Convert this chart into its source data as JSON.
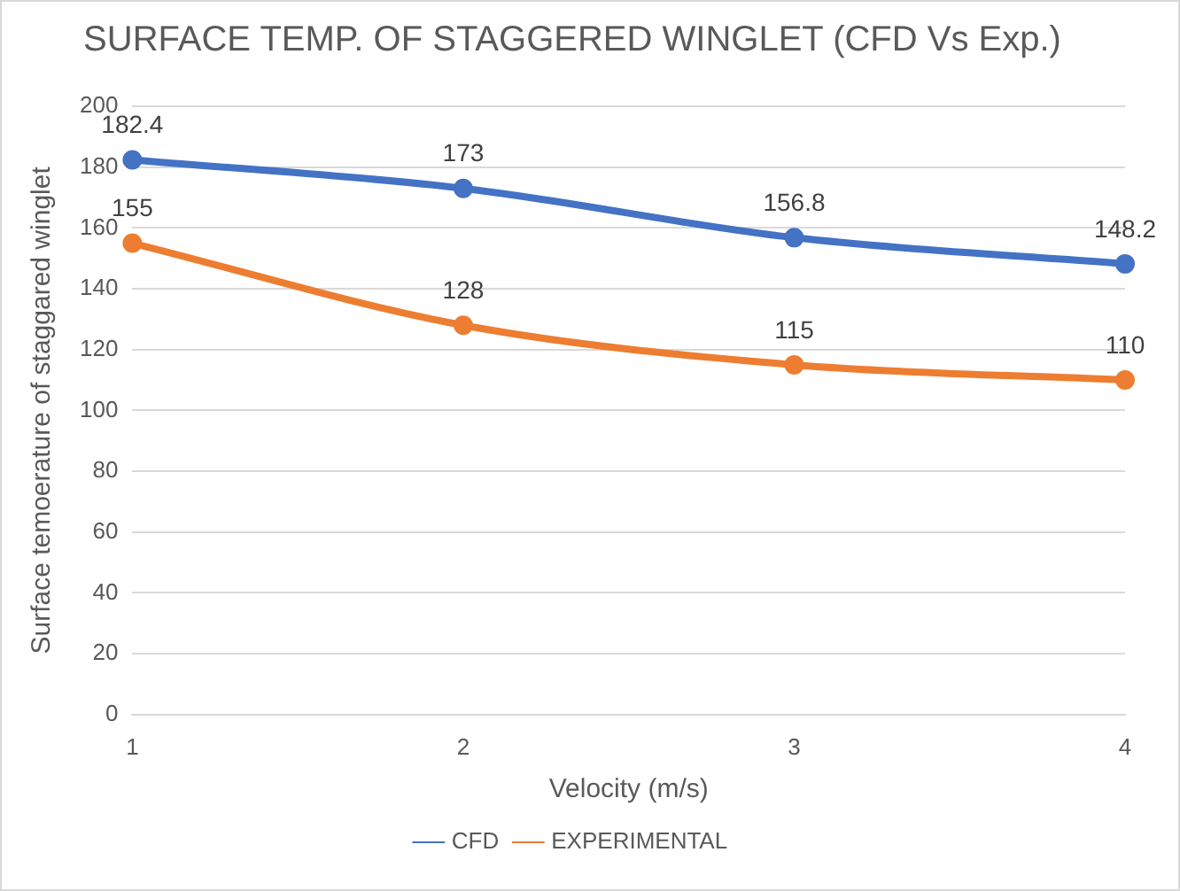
{
  "chart_data": {
    "type": "line",
    "title": "SURFACE TEMP. OF STAGGERED WINGLET (CFD Vs Exp.)",
    "xlabel": "Velocity (m/s)",
    "ylabel": "Surface temoerature of staggared winglet",
    "categories": [
      "1",
      "2",
      "3",
      "4"
    ],
    "series": [
      {
        "name": "CFD",
        "color": "#4472c4",
        "values": [
          182.4,
          173,
          156.8,
          148.2
        ]
      },
      {
        "name": "EXPERIMENTAL",
        "color": "#ed7d31",
        "values": [
          155,
          128,
          115,
          110
        ]
      }
    ],
    "ylim": [
      0,
      200
    ],
    "yticks": [
      0,
      20,
      40,
      60,
      80,
      100,
      120,
      140,
      160,
      180,
      200
    ],
    "grid": "y",
    "legend": "bottom",
    "marker": "circle",
    "line_style": "solid",
    "data_labels": true
  }
}
